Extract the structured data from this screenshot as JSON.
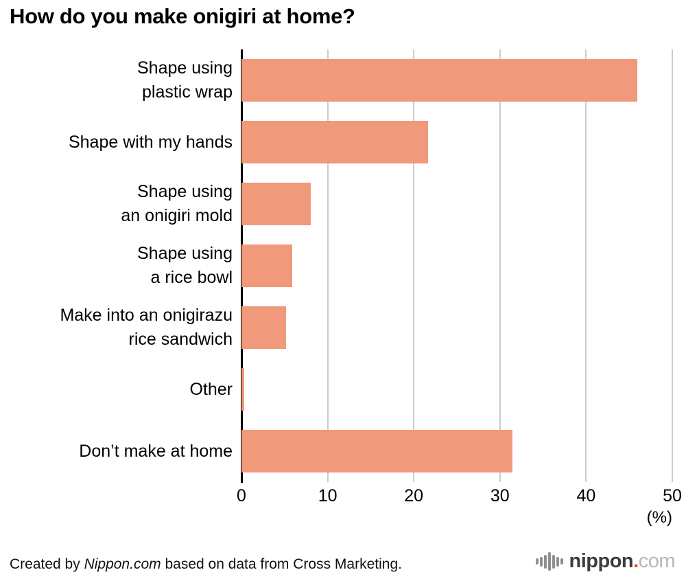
{
  "chart_data": {
    "type": "bar",
    "orientation": "horizontal",
    "title": "How do you make onigiri at home?",
    "categories": [
      "Shape using\nplastic wrap",
      "Shape with my hands",
      "Shape using\nan onigiri mold",
      "Shape using\na rice bowl",
      "Make into an onigirazu\nrice sandwich",
      "Other",
      "Don’t make at home"
    ],
    "values": [
      44.5,
      21.0,
      7.8,
      5.7,
      5.0,
      0.3,
      30.5
    ],
    "xlabel": "(%)",
    "xlim": [
      0,
      50
    ],
    "xticks": [
      0,
      10,
      20,
      30,
      40,
      50
    ],
    "grid": true,
    "legend": false,
    "bar_color": "#F0997B",
    "gridline_color": "#CCCCCC",
    "axis_color": "#000000"
  },
  "footer": {
    "credit_prefix": "Created by ",
    "credit_source": "Nippon.com",
    "credit_suffix": " based on data from Cross Marketing.",
    "logo": {
      "name": "nippon",
      "dot": ".",
      "tld": "com"
    }
  }
}
